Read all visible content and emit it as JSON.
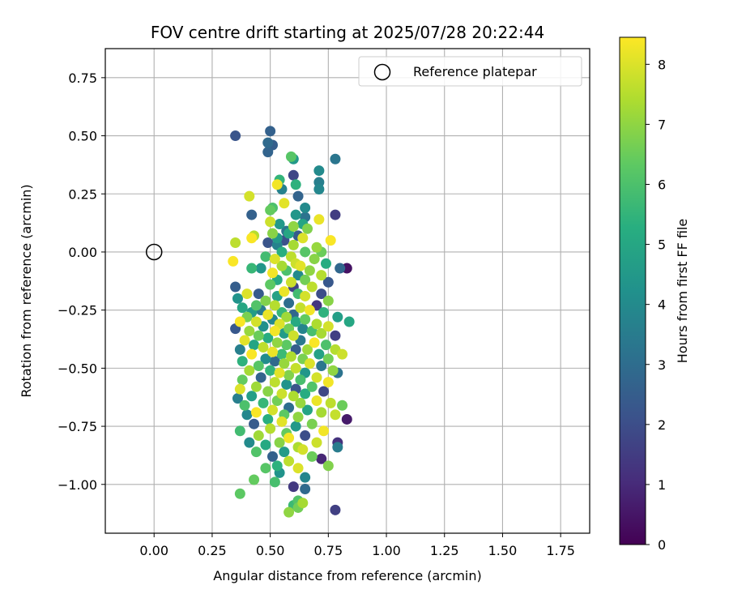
{
  "chart_data": {
    "type": "scatter",
    "title": "FOV centre drift starting at 2025/07/28 20:22:44",
    "xlabel": "Angular distance from reference (arcmin)",
    "ylabel": "Rotation from reference (arcmin)",
    "xlim": [
      -0.21,
      1.875
    ],
    "ylim": [
      -1.21,
      0.875
    ],
    "xticks": [
      0.0,
      0.25,
      0.5,
      0.75,
      1.0,
      1.25,
      1.5,
      1.75
    ],
    "xtick_labels": [
      "0.00",
      "0.25",
      "0.50",
      "0.75",
      "1.00",
      "1.25",
      "1.50",
      "1.75"
    ],
    "yticks": [
      0.75,
      0.5,
      0.25,
      0.0,
      -0.25,
      -0.5,
      -0.75,
      -1.0
    ],
    "ytick_labels": [
      "0.75",
      "0.50",
      "0.25",
      "0.00",
      "−0.25",
      "−0.50",
      "−0.75",
      "−1.00"
    ],
    "grid": true,
    "legend": {
      "position": "top-right",
      "label": "Reference platepar"
    },
    "reference_point": {
      "x": 0.0,
      "y": 0.0
    },
    "colorbar": {
      "label": "Hours from first FF file",
      "range": [
        0,
        8.45
      ],
      "ticks": [
        0,
        1,
        2,
        3,
        4,
        5,
        6,
        7,
        8
      ],
      "tick_labels": [
        "0",
        "1",
        "2",
        "3",
        "4",
        "5",
        "6",
        "7",
        "8"
      ],
      "colormap": "viridis"
    },
    "points": [
      {
        "x": 0.35,
        "y": 0.5,
        "h": 2.2
      },
      {
        "x": 0.5,
        "y": 0.52,
        "h": 2.6
      },
      {
        "x": 0.49,
        "y": 0.47,
        "h": 2.9
      },
      {
        "x": 0.51,
        "y": 0.46,
        "h": 2.5
      },
      {
        "x": 0.49,
        "y": 0.43,
        "h": 2.7
      },
      {
        "x": 0.59,
        "y": 0.41,
        "h": 6.2
      },
      {
        "x": 0.6,
        "y": 0.4,
        "h": 4.5
      },
      {
        "x": 0.78,
        "y": 0.4,
        "h": 3.3
      },
      {
        "x": 0.71,
        "y": 0.35,
        "h": 4.0
      },
      {
        "x": 0.6,
        "y": 0.33,
        "h": 1.8
      },
      {
        "x": 0.54,
        "y": 0.31,
        "h": 5.5
      },
      {
        "x": 0.71,
        "y": 0.3,
        "h": 3.6
      },
      {
        "x": 0.53,
        "y": 0.29,
        "h": 8.3
      },
      {
        "x": 0.61,
        "y": 0.29,
        "h": 5.4
      },
      {
        "x": 0.71,
        "y": 0.27,
        "h": 3.9
      },
      {
        "x": 0.55,
        "y": 0.27,
        "h": 3.7
      },
      {
        "x": 0.41,
        "y": 0.24,
        "h": 7.9
      },
      {
        "x": 0.62,
        "y": 0.24,
        "h": 2.7
      },
      {
        "x": 0.56,
        "y": 0.21,
        "h": 8.1
      },
      {
        "x": 0.51,
        "y": 0.19,
        "h": 6.0
      },
      {
        "x": 0.65,
        "y": 0.19,
        "h": 4.0
      },
      {
        "x": 0.5,
        "y": 0.18,
        "h": 6.4
      },
      {
        "x": 0.42,
        "y": 0.16,
        "h": 2.6
      },
      {
        "x": 0.78,
        "y": 0.16,
        "h": 1.5
      },
      {
        "x": 0.61,
        "y": 0.16,
        "h": 4.4
      },
      {
        "x": 0.65,
        "y": 0.15,
        "h": 3.2
      },
      {
        "x": 0.71,
        "y": 0.14,
        "h": 8.2
      },
      {
        "x": 0.5,
        "y": 0.13,
        "h": 7.8
      },
      {
        "x": 0.54,
        "y": 0.12,
        "h": 4.5
      },
      {
        "x": 0.64,
        "y": 0.12,
        "h": 4.9
      },
      {
        "x": 0.6,
        "y": 0.11,
        "h": 7.0
      },
      {
        "x": 0.66,
        "y": 0.1,
        "h": 6.8
      },
      {
        "x": 0.57,
        "y": 0.09,
        "h": 3.3
      },
      {
        "x": 0.51,
        "y": 0.08,
        "h": 6.9
      },
      {
        "x": 0.43,
        "y": 0.07,
        "h": 7.5
      },
      {
        "x": 0.58,
        "y": 0.08,
        "h": 5.0
      },
      {
        "x": 0.62,
        "y": 0.07,
        "h": 2.4
      },
      {
        "x": 0.42,
        "y": 0.06,
        "h": 8.4
      },
      {
        "x": 0.64,
        "y": 0.06,
        "h": 8.0
      },
      {
        "x": 0.53,
        "y": 0.06,
        "h": 4.5
      },
      {
        "x": 0.56,
        "y": 0.05,
        "h": 2.1
      },
      {
        "x": 0.76,
        "y": 0.05,
        "h": 8.4
      },
      {
        "x": 0.49,
        "y": 0.04,
        "h": 2.2
      },
      {
        "x": 0.35,
        "y": 0.04,
        "h": 7.6
      },
      {
        "x": 0.53,
        "y": 0.03,
        "h": 3.7
      },
      {
        "x": 0.6,
        "y": 0.03,
        "h": 7.3
      },
      {
        "x": 0.7,
        "y": 0.02,
        "h": 7.1
      },
      {
        "x": 0.55,
        "y": 0.0,
        "h": 5.3
      },
      {
        "x": 0.65,
        "y": 0.0,
        "h": 6.2
      },
      {
        "x": 0.72,
        "y": 0.0,
        "h": 6.5
      },
      {
        "x": 0.59,
        "y": -0.02,
        "h": 7.6
      },
      {
        "x": 0.48,
        "y": -0.02,
        "h": 5.8
      },
      {
        "x": 0.52,
        "y": -0.03,
        "h": 8.0
      },
      {
        "x": 0.69,
        "y": -0.03,
        "h": 6.9
      },
      {
        "x": 0.34,
        "y": -0.04,
        "h": 8.4
      },
      {
        "x": 0.61,
        "y": -0.05,
        "h": 7.8
      },
      {
        "x": 0.74,
        "y": -0.05,
        "h": 5.2
      },
      {
        "x": 0.55,
        "y": -0.06,
        "h": 7.3
      },
      {
        "x": 0.63,
        "y": -0.06,
        "h": 8.1
      },
      {
        "x": 0.42,
        "y": -0.07,
        "h": 5.6
      },
      {
        "x": 0.8,
        "y": -0.07,
        "h": 2.8
      },
      {
        "x": 0.83,
        "y": -0.07,
        "h": 0.4
      },
      {
        "x": 0.46,
        "y": -0.07,
        "h": 4.4
      },
      {
        "x": 0.57,
        "y": -0.08,
        "h": 6.0
      },
      {
        "x": 0.67,
        "y": -0.08,
        "h": 7.0
      },
      {
        "x": 0.51,
        "y": -0.09,
        "h": 8.3
      },
      {
        "x": 0.72,
        "y": -0.1,
        "h": 7.5
      },
      {
        "x": 0.62,
        "y": -0.1,
        "h": 4.0
      },
      {
        "x": 0.53,
        "y": -0.12,
        "h": 5.1
      },
      {
        "x": 0.59,
        "y": -0.13,
        "h": 7.8
      },
      {
        "x": 0.65,
        "y": -0.12,
        "h": 6.6
      },
      {
        "x": 0.75,
        "y": -0.13,
        "h": 2.3
      },
      {
        "x": 0.5,
        "y": -0.14,
        "h": 6.3
      },
      {
        "x": 0.6,
        "y": -0.15,
        "h": 1.7
      },
      {
        "x": 0.35,
        "y": -0.15,
        "h": 2.5
      },
      {
        "x": 0.68,
        "y": -0.15,
        "h": 7.6
      },
      {
        "x": 0.56,
        "y": -0.17,
        "h": 8.2
      },
      {
        "x": 0.45,
        "y": -0.18,
        "h": 2.4
      },
      {
        "x": 0.4,
        "y": -0.18,
        "h": 8.0
      },
      {
        "x": 0.62,
        "y": -0.18,
        "h": 5.8
      },
      {
        "x": 0.72,
        "y": -0.18,
        "h": 2.0
      },
      {
        "x": 0.53,
        "y": -0.19,
        "h": 4.8
      },
      {
        "x": 0.65,
        "y": -0.19,
        "h": 7.9
      },
      {
        "x": 0.36,
        "y": -0.2,
        "h": 4.3
      },
      {
        "x": 0.48,
        "y": -0.21,
        "h": 6.8
      },
      {
        "x": 0.75,
        "y": -0.21,
        "h": 6.9
      },
      {
        "x": 0.58,
        "y": -0.22,
        "h": 3.0
      },
      {
        "x": 0.44,
        "y": -0.23,
        "h": 6.1
      },
      {
        "x": 0.52,
        "y": -0.23,
        "h": 7.5
      },
      {
        "x": 0.7,
        "y": -0.23,
        "h": 1.3
      },
      {
        "x": 0.38,
        "y": -0.24,
        "h": 5.0
      },
      {
        "x": 0.63,
        "y": -0.24,
        "h": 7.7
      },
      {
        "x": 0.46,
        "y": -0.25,
        "h": 3.5
      },
      {
        "x": 0.67,
        "y": -0.25,
        "h": 8.3
      },
      {
        "x": 0.55,
        "y": -0.26,
        "h": 5.6
      },
      {
        "x": 0.42,
        "y": -0.26,
        "h": 4.6
      },
      {
        "x": 0.73,
        "y": -0.26,
        "h": 5.4
      },
      {
        "x": 0.49,
        "y": -0.27,
        "h": 8.2
      },
      {
        "x": 0.6,
        "y": -0.27,
        "h": 2.8
      },
      {
        "x": 0.4,
        "y": -0.28,
        "h": 6.7
      },
      {
        "x": 0.57,
        "y": -0.28,
        "h": 7.2
      },
      {
        "x": 0.79,
        "y": -0.28,
        "h": 4.7
      },
      {
        "x": 0.51,
        "y": -0.29,
        "h": 3.9
      },
      {
        "x": 0.65,
        "y": -0.29,
        "h": 6.4
      },
      {
        "x": 0.44,
        "y": -0.3,
        "h": 7.9
      },
      {
        "x": 0.37,
        "y": -0.3,
        "h": 8.4
      },
      {
        "x": 0.61,
        "y": -0.3,
        "h": 5.1
      },
      {
        "x": 0.7,
        "y": -0.31,
        "h": 7.4
      },
      {
        "x": 0.54,
        "y": -0.31,
        "h": 8.0
      },
      {
        "x": 0.84,
        "y": -0.3,
        "h": 5.0
      },
      {
        "x": 0.47,
        "y": -0.32,
        "h": 4.2
      },
      {
        "x": 0.75,
        "y": -0.32,
        "h": 7.9
      },
      {
        "x": 0.35,
        "y": -0.33,
        "h": 2.3
      },
      {
        "x": 0.58,
        "y": -0.33,
        "h": 6.6
      },
      {
        "x": 0.64,
        "y": -0.33,
        "h": 3.8
      },
      {
        "x": 0.41,
        "y": -0.34,
        "h": 7.1
      },
      {
        "x": 0.52,
        "y": -0.34,
        "h": 8.3
      },
      {
        "x": 0.68,
        "y": -0.34,
        "h": 5.9
      },
      {
        "x": 0.56,
        "y": -0.35,
        "h": 4.6
      },
      {
        "x": 0.72,
        "y": -0.35,
        "h": 7.3
      },
      {
        "x": 0.45,
        "y": -0.36,
        "h": 6.5
      },
      {
        "x": 0.6,
        "y": -0.36,
        "h": 7.8
      },
      {
        "x": 0.78,
        "y": -0.36,
        "h": 1.6
      },
      {
        "x": 0.49,
        "y": -0.37,
        "h": 5.2
      },
      {
        "x": 0.39,
        "y": -0.38,
        "h": 8.1
      },
      {
        "x": 0.63,
        "y": -0.38,
        "h": 3.4
      },
      {
        "x": 0.53,
        "y": -0.39,
        "h": 7.0
      },
      {
        "x": 0.69,
        "y": -0.39,
        "h": 8.4
      },
      {
        "x": 0.43,
        "y": -0.4,
        "h": 4.9
      },
      {
        "x": 0.57,
        "y": -0.4,
        "h": 6.3
      },
      {
        "x": 0.74,
        "y": -0.4,
        "h": 6.0
      },
      {
        "x": 0.47,
        "y": -0.41,
        "h": 7.6
      },
      {
        "x": 0.61,
        "y": -0.42,
        "h": 2.5
      },
      {
        "x": 0.66,
        "y": -0.42,
        "h": 7.2
      },
      {
        "x": 0.37,
        "y": -0.42,
        "h": 3.6
      },
      {
        "x": 0.51,
        "y": -0.43,
        "h": 8.2
      },
      {
        "x": 0.78,
        "y": -0.42,
        "h": 7.5
      },
      {
        "x": 0.55,
        "y": -0.44,
        "h": 5.7
      },
      {
        "x": 0.42,
        "y": -0.44,
        "h": 8.4
      },
      {
        "x": 0.71,
        "y": -0.44,
        "h": 4.8
      },
      {
        "x": 0.81,
        "y": -0.44,
        "h": 7.8
      },
      {
        "x": 0.59,
        "y": -0.45,
        "h": 7.4
      },
      {
        "x": 0.48,
        "y": -0.46,
        "h": 4.1
      },
      {
        "x": 0.64,
        "y": -0.46,
        "h": 6.7
      },
      {
        "x": 0.75,
        "y": -0.46,
        "h": 6.6
      },
      {
        "x": 0.52,
        "y": -0.47,
        "h": 2.9
      },
      {
        "x": 0.38,
        "y": -0.47,
        "h": 5.4
      },
      {
        "x": 0.67,
        "y": -0.48,
        "h": 8.0
      },
      {
        "x": 0.56,
        "y": -0.48,
        "h": 7.1
      },
      {
        "x": 0.45,
        "y": -0.49,
        "h": 6.2
      },
      {
        "x": 0.72,
        "y": -0.49,
        "h": 3.3
      },
      {
        "x": 0.61,
        "y": -0.5,
        "h": 7.7
      },
      {
        "x": 0.5,
        "y": -0.51,
        "h": 5.5
      },
      {
        "x": 0.41,
        "y": -0.51,
        "h": 7.3
      },
      {
        "x": 0.77,
        "y": -0.51,
        "h": 7.0
      },
      {
        "x": 0.65,
        "y": -0.52,
        "h": 4.4
      },
      {
        "x": 0.54,
        "y": -0.52,
        "h": 8.1
      },
      {
        "x": 0.79,
        "y": -0.52,
        "h": 3.2
      },
      {
        "x": 0.58,
        "y": -0.53,
        "h": 6.8
      },
      {
        "x": 0.46,
        "y": -0.54,
        "h": 2.7
      },
      {
        "x": 0.7,
        "y": -0.54,
        "h": 7.9
      },
      {
        "x": 0.63,
        "y": -0.55,
        "h": 5.9
      },
      {
        "x": 0.38,
        "y": -0.55,
        "h": 6.4
      },
      {
        "x": 0.52,
        "y": -0.56,
        "h": 7.6
      },
      {
        "x": 0.75,
        "y": -0.56,
        "h": 8.3
      },
      {
        "x": 0.57,
        "y": -0.57,
        "h": 4.3
      },
      {
        "x": 0.44,
        "y": -0.58,
        "h": 7.2
      },
      {
        "x": 0.68,
        "y": -0.58,
        "h": 6.1
      },
      {
        "x": 0.61,
        "y": -0.59,
        "h": 2.2
      },
      {
        "x": 0.37,
        "y": -0.59,
        "h": 8.0
      },
      {
        "x": 0.49,
        "y": -0.6,
        "h": 6.9
      },
      {
        "x": 0.73,
        "y": -0.6,
        "h": 1.8
      },
      {
        "x": 0.55,
        "y": -0.61,
        "h": 7.8
      },
      {
        "x": 0.65,
        "y": -0.61,
        "h": 5.2
      },
      {
        "x": 0.42,
        "y": -0.62,
        "h": 4.7
      },
      {
        "x": 0.6,
        "y": -0.62,
        "h": 7.4
      },
      {
        "x": 0.36,
        "y": -0.63,
        "h": 3.6
      },
      {
        "x": 0.53,
        "y": -0.64,
        "h": 6.6
      },
      {
        "x": 0.7,
        "y": -0.64,
        "h": 8.2
      },
      {
        "x": 0.47,
        "y": -0.65,
        "h": 5.6
      },
      {
        "x": 0.63,
        "y": -0.65,
        "h": 7.1
      },
      {
        "x": 0.76,
        "y": -0.65,
        "h": 7.6
      },
      {
        "x": 0.39,
        "y": -0.66,
        "h": 6.0
      },
      {
        "x": 0.58,
        "y": -0.67,
        "h": 3.0
      },
      {
        "x": 0.81,
        "y": -0.66,
        "h": 6.5
      },
      {
        "x": 0.51,
        "y": -0.68,
        "h": 7.9
      },
      {
        "x": 0.66,
        "y": -0.68,
        "h": 4.9
      },
      {
        "x": 0.44,
        "y": -0.69,
        "h": 8.4
      },
      {
        "x": 0.72,
        "y": -0.69,
        "h": 7.3
      },
      {
        "x": 0.56,
        "y": -0.7,
        "h": 6.3
      },
      {
        "x": 0.4,
        "y": -0.7,
        "h": 3.9
      },
      {
        "x": 0.62,
        "y": -0.71,
        "h": 7.0
      },
      {
        "x": 0.78,
        "y": -0.7,
        "h": 7.7
      },
      {
        "x": 0.49,
        "y": -0.72,
        "h": 5.3
      },
      {
        "x": 0.83,
        "y": -0.72,
        "h": 0.6
      },
      {
        "x": 0.55,
        "y": -0.73,
        "h": 8.1
      },
      {
        "x": 0.43,
        "y": -0.74,
        "h": 2.4
      },
      {
        "x": 0.68,
        "y": -0.74,
        "h": 6.7
      },
      {
        "x": 0.61,
        "y": -0.75,
        "h": 4.5
      },
      {
        "x": 0.5,
        "y": -0.76,
        "h": 7.5
      },
      {
        "x": 0.37,
        "y": -0.77,
        "h": 5.8
      },
      {
        "x": 0.73,
        "y": -0.77,
        "h": 8.3
      },
      {
        "x": 0.57,
        "y": -0.78,
        "h": 6.4
      },
      {
        "x": 0.45,
        "y": -0.79,
        "h": 7.2
      },
      {
        "x": 0.65,
        "y": -0.79,
        "h": 2.0
      },
      {
        "x": 0.58,
        "y": -0.8,
        "h": 8.3
      },
      {
        "x": 0.41,
        "y": -0.82,
        "h": 4.0
      },
      {
        "x": 0.54,
        "y": -0.82,
        "h": 6.9
      },
      {
        "x": 0.7,
        "y": -0.82,
        "h": 7.8
      },
      {
        "x": 0.79,
        "y": -0.82,
        "h": 1.2
      },
      {
        "x": 0.48,
        "y": -0.83,
        "h": 5.1
      },
      {
        "x": 0.62,
        "y": -0.84,
        "h": 7.4
      },
      {
        "x": 0.79,
        "y": -0.84,
        "h": 3.5
      },
      {
        "x": 0.44,
        "y": -0.86,
        "h": 6.1
      },
      {
        "x": 0.56,
        "y": -0.86,
        "h": 4.6
      },
      {
        "x": 0.64,
        "y": -0.85,
        "h": 7.9
      },
      {
        "x": 0.51,
        "y": -0.88,
        "h": 2.6
      },
      {
        "x": 0.68,
        "y": -0.88,
        "h": 6.5
      },
      {
        "x": 0.72,
        "y": -0.89,
        "h": 0.9
      },
      {
        "x": 0.58,
        "y": -0.9,
        "h": 7.6
      },
      {
        "x": 0.53,
        "y": -0.92,
        "h": 5.4
      },
      {
        "x": 0.62,
        "y": -0.93,
        "h": 8.0
      },
      {
        "x": 0.48,
        "y": -0.93,
        "h": 6.2
      },
      {
        "x": 0.75,
        "y": -0.92,
        "h": 6.8
      },
      {
        "x": 0.54,
        "y": -0.95,
        "h": 4.3
      },
      {
        "x": 0.43,
        "y": -0.98,
        "h": 6.4
      },
      {
        "x": 0.65,
        "y": -0.97,
        "h": 3.8
      },
      {
        "x": 0.52,
        "y": -0.99,
        "h": 5.9
      },
      {
        "x": 0.6,
        "y": -1.01,
        "h": 1.4
      },
      {
        "x": 0.65,
        "y": -1.02,
        "h": 2.9
      },
      {
        "x": 0.37,
        "y": -1.04,
        "h": 6.3
      },
      {
        "x": 0.62,
        "y": -1.07,
        "h": 6.1
      },
      {
        "x": 0.64,
        "y": -1.08,
        "h": 7.3
      },
      {
        "x": 0.6,
        "y": -1.09,
        "h": 5.7
      },
      {
        "x": 0.62,
        "y": -1.1,
        "h": 6.6
      },
      {
        "x": 0.78,
        "y": -1.11,
        "h": 1.6
      },
      {
        "x": 0.58,
        "y": -1.12,
        "h": 7.0
      }
    ]
  }
}
